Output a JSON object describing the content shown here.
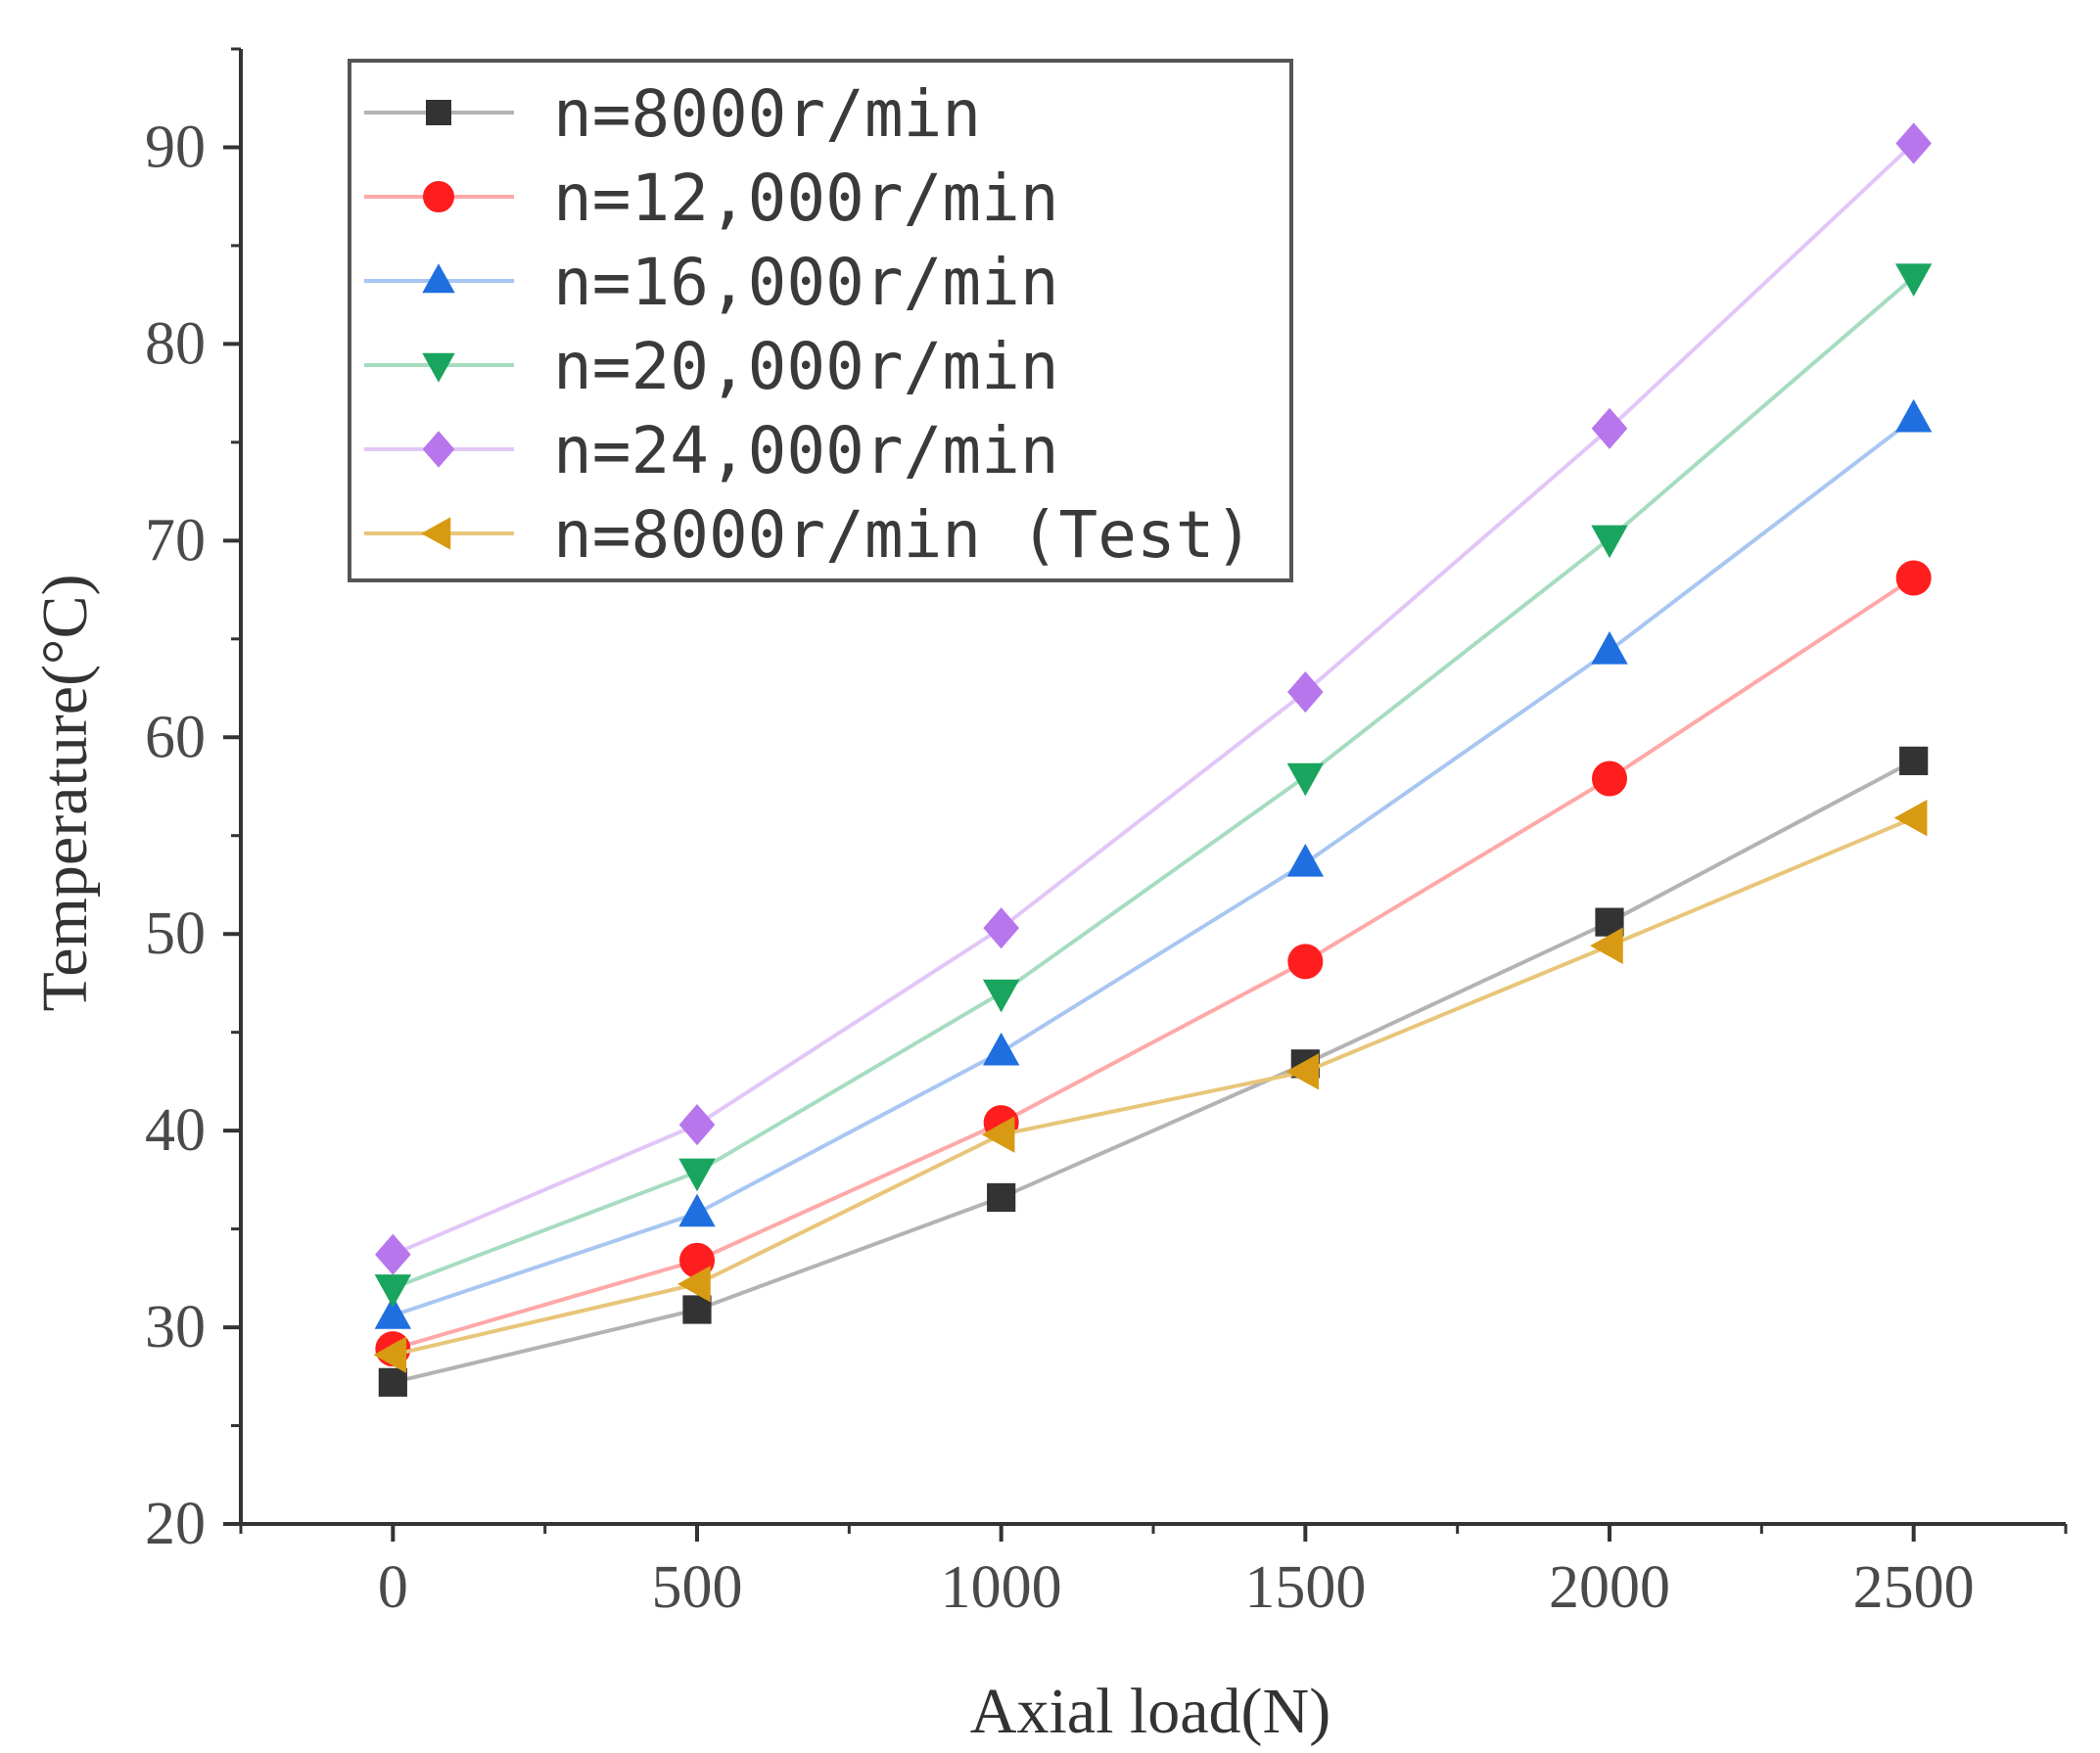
{
  "chart_data": {
    "type": "line",
    "title": "",
    "xlabel": "Axial load(N)",
    "ylabel": "Temperature(°C)",
    "x": [
      0,
      500,
      1000,
      1500,
      2000,
      2500
    ],
    "xlim": [
      -250,
      2750
    ],
    "ylim": [
      20,
      95
    ],
    "xticks": [
      0,
      500,
      1000,
      1500,
      2000,
      2500
    ],
    "xtick_labels": [
      "0",
      "500",
      "1000",
      "1500",
      "2000",
      "2500"
    ],
    "yticks": [
      20,
      30,
      40,
      50,
      60,
      70,
      80,
      90
    ],
    "ytick_labels": [
      "20",
      "30",
      "40",
      "50",
      "60",
      "70",
      "80",
      "90"
    ],
    "grid": false,
    "legend_position": "top-left",
    "series": [
      {
        "name": "n=8000r/min",
        "values": [
          27.2,
          30.9,
          36.6,
          43.4,
          50.6,
          58.8
        ],
        "color": "#333333",
        "line_color": "#b3b3b3",
        "marker": "square"
      },
      {
        "name": "n=12,000r/min",
        "values": [
          28.9,
          33.4,
          40.4,
          48.6,
          57.9,
          68.1
        ],
        "color": "#ff1e1e",
        "line_color": "#ffa8a8",
        "marker": "circle"
      },
      {
        "name": "n=16,000r/min",
        "values": [
          30.6,
          35.8,
          44.0,
          53.6,
          64.4,
          76.2
        ],
        "color": "#1f6fe0",
        "line_color": "#a8c6f2",
        "marker": "triangle-up"
      },
      {
        "name": "n=20,000r/min",
        "values": [
          32.0,
          37.9,
          47.0,
          58.0,
          70.1,
          83.4
        ],
        "color": "#1aa55e",
        "line_color": "#a6dcc0",
        "marker": "triangle-down"
      },
      {
        "name": "n=24,000r/min",
        "values": [
          33.7,
          40.3,
          50.3,
          62.3,
          75.7,
          90.2
        ],
        "color": "#b876ec",
        "line_color": "#e2c6f8",
        "marker": "diamond"
      },
      {
        "name": "n=8000r/min (Test)",
        "values": [
          28.6,
          32.2,
          39.8,
          43.0,
          49.4,
          55.9
        ],
        "color": "#d79a12",
        "line_color": "#e8c578",
        "marker": "triangle-left"
      }
    ]
  }
}
